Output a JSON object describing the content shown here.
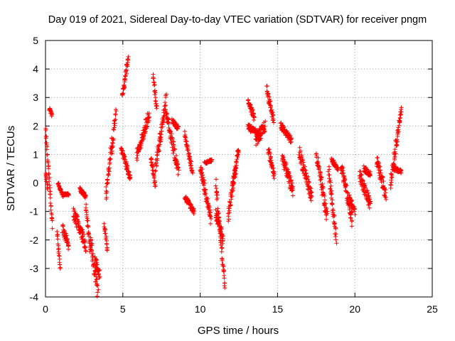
{
  "chart_data": {
    "type": "scatter",
    "title": "Day 019 of 2021, Sidereal Day-to-day VTEC variation (SDTVAR) for receiver pngm",
    "xlabel": "GPS time / hours",
    "ylabel": "SDTVAR / TECUs",
    "xlim": [
      0,
      25
    ],
    "ylim": [
      -4,
      5
    ],
    "xticks": [
      0,
      5,
      10,
      15,
      20,
      25
    ],
    "yticks": [
      -4,
      -3,
      -2,
      -1,
      0,
      1,
      2,
      3,
      4,
      5
    ],
    "grid": true,
    "marker": "+",
    "series_color": "#ff0000",
    "segments": [
      {
        "x0": 0.0,
        "x1": 0.45,
        "y0": 1.9,
        "y1": -1.5,
        "spread": 0.2
      },
      {
        "x0": 0.25,
        "x1": 0.42,
        "y0": 2.6,
        "y1": 2.4,
        "spread": 0.12
      },
      {
        "x0": 0.0,
        "x1": 0.15,
        "y0": 0.4,
        "y1": -0.2,
        "spread": 0.1
      },
      {
        "x0": 0.75,
        "x1": 0.95,
        "y0": -1.7,
        "y1": -3.0,
        "spread": 0.15
      },
      {
        "x0": 0.8,
        "x1": 1.1,
        "y0": 0.0,
        "y1": -0.45,
        "spread": 0.1
      },
      {
        "x0": 1.1,
        "x1": 1.5,
        "y0": -0.4,
        "y1": -0.4,
        "spread": 0.08
      },
      {
        "x0": 1.1,
        "x1": 1.5,
        "y0": -1.6,
        "y1": -2.2,
        "spread": 0.3
      },
      {
        "x0": 1.8,
        "x1": 2.6,
        "y0": -1.0,
        "y1": -2.2,
        "spread": 0.5
      },
      {
        "x0": 2.2,
        "x1": 2.6,
        "y0": -0.2,
        "y1": -0.5,
        "spread": 0.15
      },
      {
        "x0": 2.6,
        "x1": 2.9,
        "y0": -0.8,
        "y1": -2.4,
        "spread": 0.3
      },
      {
        "x0": 2.9,
        "x1": 3.4,
        "y0": -2.0,
        "y1": -3.9,
        "spread": 0.6
      },
      {
        "x0": 3.2,
        "x1": 3.5,
        "y0": -2.5,
        "y1": -3.3,
        "spread": 0.4
      },
      {
        "x0": 3.8,
        "x1": 4.0,
        "y0": -1.4,
        "y1": -2.4,
        "spread": 0.25
      },
      {
        "x0": 3.9,
        "x1": 4.3,
        "y0": -0.5,
        "y1": 1.5,
        "spread": 0.4
      },
      {
        "x0": 4.3,
        "x1": 4.55,
        "y0": 1.0,
        "y1": 2.6,
        "spread": 0.4
      },
      {
        "x0": 4.95,
        "x1": 5.35,
        "y0": 3.0,
        "y1": 4.4,
        "spread": 0.2
      },
      {
        "x0": 4.9,
        "x1": 5.5,
        "y0": 1.2,
        "y1": 0.1,
        "spread": 0.25
      },
      {
        "x0": 5.9,
        "x1": 6.7,
        "y0": 1.0,
        "y1": 2.4,
        "spread": 0.4
      },
      {
        "x0": 6.8,
        "x1": 7.1,
        "y0": 0.9,
        "y1": -0.1,
        "spread": 0.2
      },
      {
        "x0": 6.95,
        "x1": 7.2,
        "y0": 3.8,
        "y1": 2.6,
        "spread": 0.2
      },
      {
        "x0": 7.1,
        "x1": 7.8,
        "y0": 0.5,
        "y1": 2.9,
        "spread": 0.5
      },
      {
        "x0": 7.8,
        "x1": 8.6,
        "y0": 2.4,
        "y1": 0.4,
        "spread": 0.4
      },
      {
        "x0": 8.2,
        "x1": 8.6,
        "y0": 2.2,
        "y1": 1.9,
        "spread": 0.15
      },
      {
        "x0": 9.0,
        "x1": 9.5,
        "y0": 1.7,
        "y1": 0.4,
        "spread": 0.25
      },
      {
        "x0": 9.0,
        "x1": 9.6,
        "y0": -0.5,
        "y1": -1.0,
        "spread": 0.2
      },
      {
        "x0": 10.0,
        "x1": 10.7,
        "y0": 0.6,
        "y1": -1.3,
        "spread": 0.4
      },
      {
        "x0": 10.3,
        "x1": 10.75,
        "y0": 0.7,
        "y1": 0.8,
        "spread": 0.1
      },
      {
        "x0": 11.0,
        "x1": 11.6,
        "y0": 0.0,
        "y1": -3.6,
        "spread": 0.4
      },
      {
        "x0": 11.0,
        "x1": 11.5,
        "y0": -1.0,
        "y1": -2.0,
        "spread": 0.4
      },
      {
        "x0": 11.8,
        "x1": 12.3,
        "y0": -1.2,
        "y1": 0.5,
        "spread": 0.4
      },
      {
        "x0": 12.1,
        "x1": 12.5,
        "y0": 0.0,
        "y1": 1.2,
        "spread": 0.3
      },
      {
        "x0": 13.1,
        "x1": 13.5,
        "y0": 2.9,
        "y1": 2.3,
        "spread": 0.25
      },
      {
        "x0": 13.1,
        "x1": 13.9,
        "y0": 2.0,
        "y1": 1.6,
        "spread": 0.25
      },
      {
        "x0": 13.6,
        "x1": 14.2,
        "y0": 1.5,
        "y1": 2.0,
        "spread": 0.4
      },
      {
        "x0": 14.3,
        "x1": 14.75,
        "y0": 3.3,
        "y1": 2.2,
        "spread": 0.3
      },
      {
        "x0": 14.4,
        "x1": 14.8,
        "y0": 1.2,
        "y1": 0.2,
        "spread": 0.3
      },
      {
        "x0": 15.2,
        "x1": 15.9,
        "y0": 2.0,
        "y1": 1.5,
        "spread": 0.25
      },
      {
        "x0": 15.3,
        "x1": 16.0,
        "y0": 0.9,
        "y1": -0.3,
        "spread": 0.4
      },
      {
        "x0": 16.4,
        "x1": 17.2,
        "y0": 1.1,
        "y1": -0.5,
        "spread": 0.5
      },
      {
        "x0": 17.5,
        "x1": 18.2,
        "y0": 1.0,
        "y1": -1.2,
        "spread": 0.5
      },
      {
        "x0": 18.3,
        "x1": 18.8,
        "y0": 0.5,
        "y1": -2.0,
        "spread": 0.4
      },
      {
        "x0": 18.5,
        "x1": 18.9,
        "y0": 0.8,
        "y1": 0.5,
        "spread": 0.15
      },
      {
        "x0": 19.1,
        "x1": 19.8,
        "y0": 0.7,
        "y1": -1.3,
        "spread": 0.5
      },
      {
        "x0": 19.6,
        "x1": 20.0,
        "y0": -0.5,
        "y1": -1.0,
        "spread": 0.3
      },
      {
        "x0": 20.3,
        "x1": 21.0,
        "y0": 0.3,
        "y1": -0.8,
        "spread": 0.4
      },
      {
        "x0": 20.6,
        "x1": 21.0,
        "y0": 0.5,
        "y1": 0.3,
        "spread": 0.2
      },
      {
        "x0": 21.4,
        "x1": 22.0,
        "y0": 0.8,
        "y1": -0.4,
        "spread": 0.4
      },
      {
        "x0": 22.3,
        "x1": 23.0,
        "y0": 0.0,
        "y1": 2.6,
        "spread": 0.4
      },
      {
        "x0": 22.5,
        "x1": 23.0,
        "y0": 0.5,
        "y1": 0.4,
        "spread": 0.15
      }
    ]
  }
}
